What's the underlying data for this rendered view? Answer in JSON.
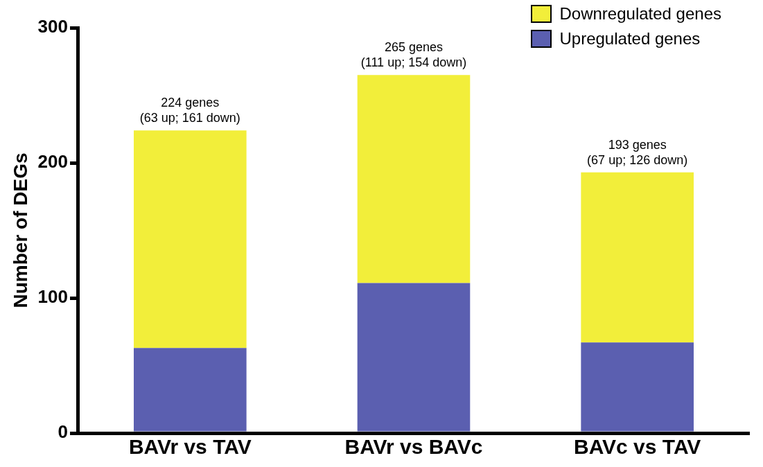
{
  "chart_data": {
    "type": "bar",
    "stacked": true,
    "ylabel": "Number of DEGs",
    "categories": [
      "BAVr vs TAV",
      "BAVr vs BAVc",
      "BAVc vs TAV"
    ],
    "series": [
      {
        "name": "Upregulated genes",
        "color": "#5b5fb0",
        "values": [
          63,
          111,
          67
        ]
      },
      {
        "name": "Downregulated genes",
        "color": "#f2ee3a",
        "values": [
          161,
          154,
          126
        ]
      }
    ],
    "ylim": [
      0,
      300
    ],
    "yticks": [
      0,
      100,
      200,
      300
    ],
    "grid": false,
    "legend": "top right",
    "annotations": [
      {
        "text": "224 genes\n(63 up; 161 down)",
        "x": "BAVr vs TAV",
        "y": 224
      },
      {
        "text": "265 genes\n(111 up; 154 down)",
        "x": "BAVr vs BAVc",
        "y": 265
      },
      {
        "text": "193 genes\n(67 up; 126 down)",
        "x": "BAVc vs TAV",
        "y": 193
      }
    ]
  }
}
